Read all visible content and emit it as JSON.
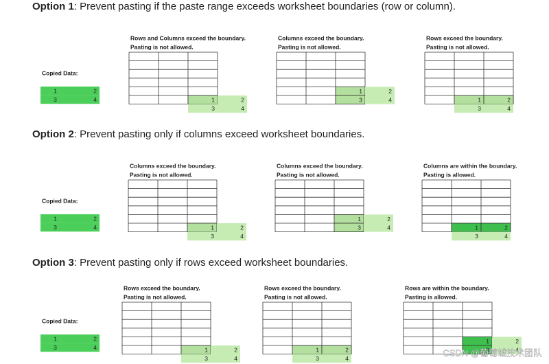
{
  "options": [
    {
      "label": "Option 1",
      "text": ": Prevent pasting if the paste range exceeds worksheet boundaries (row or column).",
      "copied_label": "Copied Data:",
      "copied": [
        [
          1,
          2
        ],
        [
          3,
          4
        ]
      ],
      "scenarios": [
        {
          "line1": "Rows and Columns exceed the boundary.",
          "line2": "Pasting is not allowed.",
          "cells": [
            [
              1,
              2
            ],
            [
              3,
              4
            ]
          ]
        },
        {
          "line1": "Columns exceed the boundary.",
          "line2": "Pasting is not allowed.",
          "cells": [
            [
              1,
              2
            ],
            [
              3,
              4
            ]
          ]
        },
        {
          "line1": "Rows exceed the boundary.",
          "line2": "Pasting is not allowed.",
          "cells": [
            [
              1,
              2
            ],
            [
              3,
              4
            ]
          ]
        }
      ]
    },
    {
      "label": "Option 2",
      "text": ": Prevent pasting only if columns exceed worksheet boundaries.",
      "copied_label": "Copied Data:",
      "copied": [
        [
          1,
          2
        ],
        [
          3,
          4
        ]
      ],
      "scenarios": [
        {
          "line1": "Columns exceed the boundary.",
          "line2": "Pasting is not allowed.",
          "cells": [
            [
              1,
              2
            ],
            [
              3,
              4
            ]
          ]
        },
        {
          "line1": "Columns exceed the boundary.",
          "line2": "Pasting is not allowed.",
          "cells": [
            [
              1,
              2
            ],
            [
              3,
              4
            ]
          ]
        },
        {
          "line1": "Columns are within the boundary.",
          "line2": "Pasting is allowed.",
          "cells": [
            [
              1,
              2
            ],
            [
              3,
              4
            ]
          ]
        }
      ]
    },
    {
      "label": "Option 3",
      "text": ": Prevent pasting only if rows exceed worksheet boundaries.",
      "copied_label": "Copied Data:",
      "copied": [
        [
          1,
          2
        ],
        [
          3,
          4
        ]
      ],
      "scenarios": [
        {
          "line1": "Rows exceed the boundary.",
          "line2": "Pasting is not allowed.",
          "cells": [
            [
              1,
              2
            ],
            [
              3,
              4
            ]
          ]
        },
        {
          "line1": "Rows exceed the boundary.",
          "line2": "Pasting is not allowed.",
          "cells": [
            [
              1,
              2
            ],
            [
              3,
              4
            ]
          ]
        },
        {
          "line1": "Rows are within the boundary.",
          "line2": "Pasting is allowed.",
          "cells": [
            [
              1,
              2
            ],
            [
              3,
              4
            ]
          ]
        }
      ]
    }
  ],
  "watermark": "CSDN @葡萄城技术团队"
}
